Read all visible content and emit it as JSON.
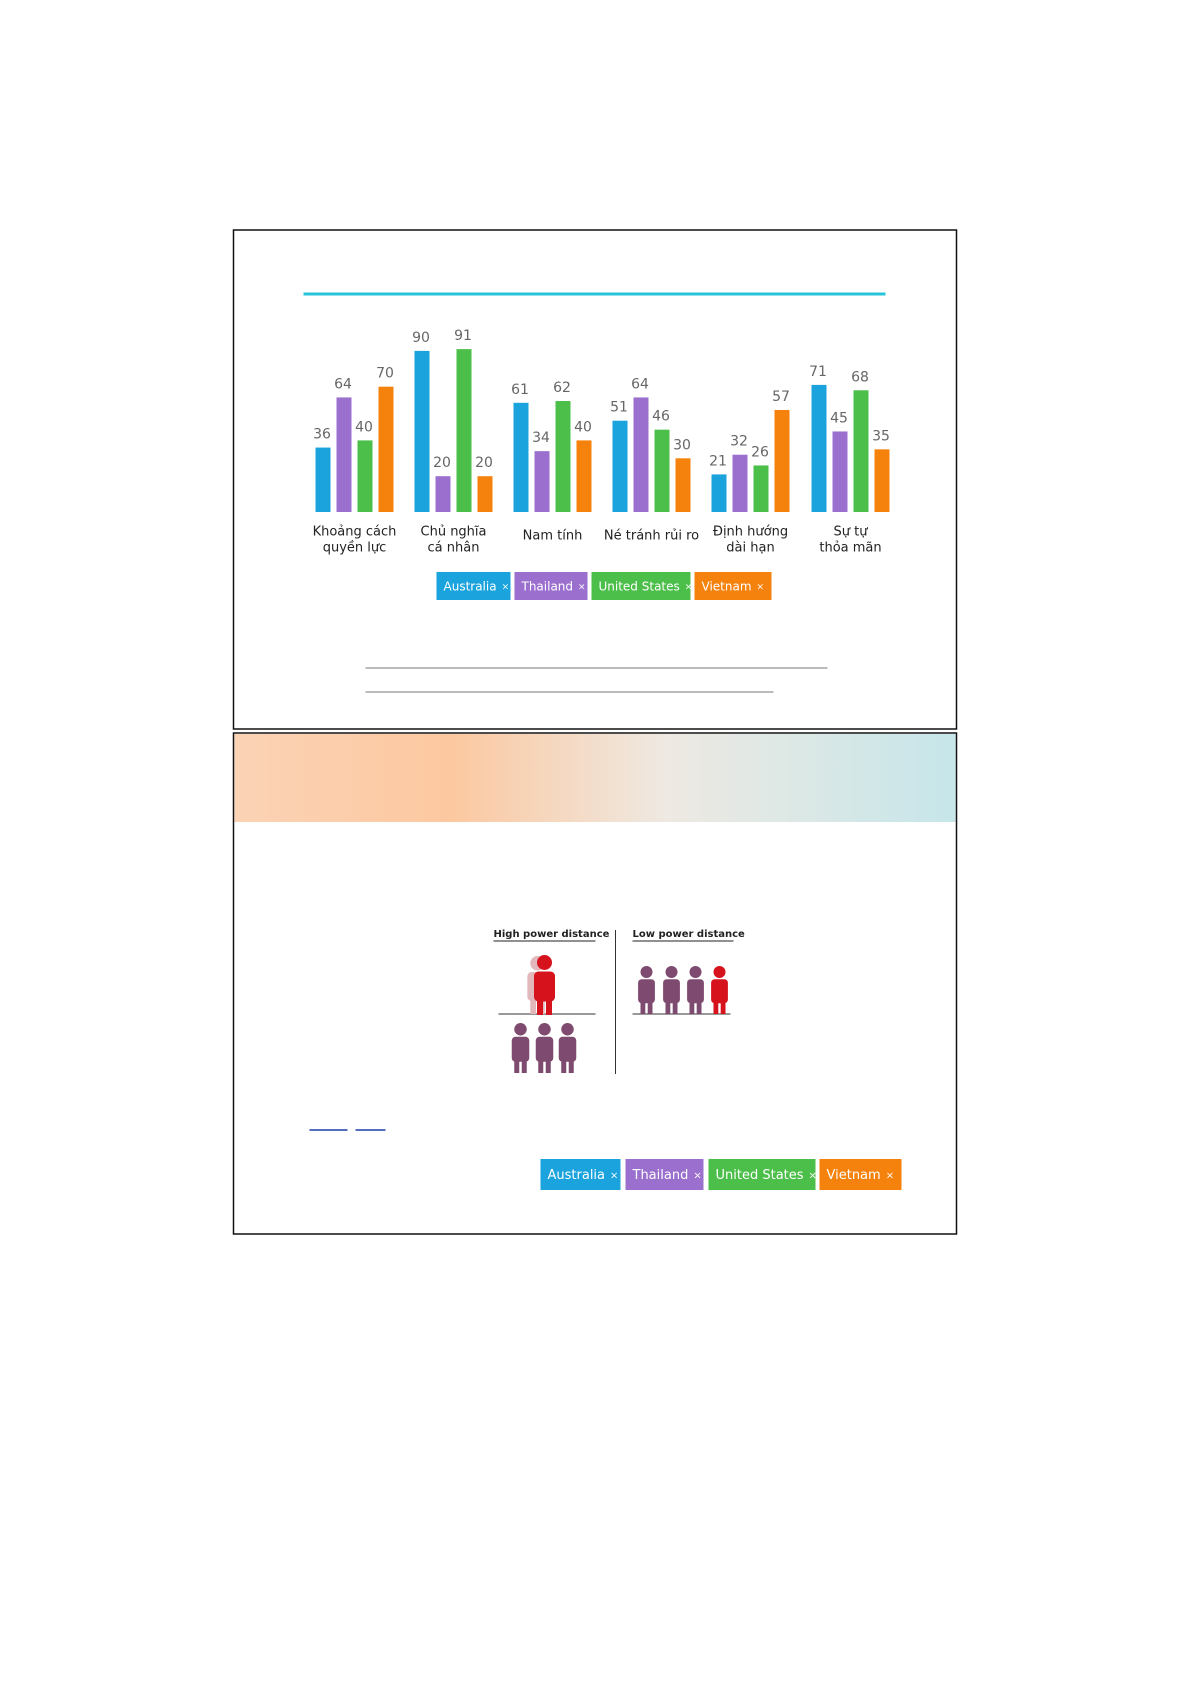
{
  "chart_data": {
    "type": "bar",
    "categories": [
      [
        "Khoảng cách",
        "quyền lực"
      ],
      [
        "Chủ nghĩa",
        "cá nhân"
      ],
      [
        "Nam tính"
      ],
      [
        "Né tránh rủi ro"
      ],
      [
        "Định hướng",
        "dài hạn"
      ],
      [
        "Sự tự",
        "thỏa mãn"
      ]
    ],
    "series": [
      {
        "name": "Australia",
        "color": "#1aa3dc",
        "values": [
          36,
          90,
          61,
          51,
          21,
          71
        ]
      },
      {
        "name": "Thailand",
        "color": "#9b6fce",
        "values": [
          64,
          20,
          34,
          64,
          32,
          45
        ]
      },
      {
        "name": "United States",
        "color": "#4cbf4a",
        "values": [
          40,
          91,
          62,
          46,
          26,
          68
        ]
      },
      {
        "name": "Vietnam",
        "color": "#f5820d",
        "values": [
          70,
          20,
          40,
          30,
          57,
          35
        ]
      }
    ],
    "ylim": [
      0,
      100
    ],
    "legend_close": "×"
  },
  "diagram": {
    "left_label": "High power distance",
    "right_label": "Low power distance"
  }
}
